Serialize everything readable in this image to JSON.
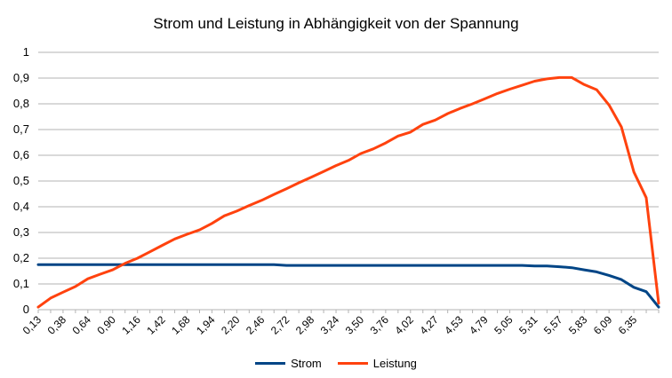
{
  "chart_data": {
    "type": "line",
    "title": "Strom und Leistung in Abhängigkeit von der Spannung",
    "xlabel": "",
    "ylabel": "",
    "ylim": [
      0,
      1
    ],
    "yticks": [
      "0",
      "0,1",
      "0,2",
      "0,3",
      "0,4",
      "0,5",
      "0,6",
      "0,7",
      "0,8",
      "0,9",
      "1"
    ],
    "grid": true,
    "legend_position": "bottom",
    "x": [
      "0,13",
      "0,26",
      "0,38",
      "0,51",
      "0,64",
      "0,77",
      "0,90",
      "1,03",
      "1,16",
      "1,29",
      "1,42",
      "1,55",
      "1,68",
      "1,81",
      "1,94",
      "2,07",
      "2,20",
      "2,33",
      "2,46",
      "2,59",
      "2,72",
      "2,85",
      "2,98",
      "3,11",
      "3,24",
      "3,37",
      "3,50",
      "3,63",
      "3,76",
      "3,89",
      "4,02",
      "4,15",
      "4,27",
      "4,40",
      "4,53",
      "4,66",
      "4,79",
      "4,92",
      "5,05",
      "5,18",
      "5,31",
      "5,44",
      "5,57",
      "5,70",
      "5,83",
      "5,96",
      "6,09",
      "6,22",
      "6,35",
      "6,48",
      "6,61"
    ],
    "x_tick_labels_shown": [
      "0,13",
      "0,38",
      "0,64",
      "0,90",
      "1,16",
      "1,42",
      "1,68",
      "1,94",
      "2,20",
      "2,46",
      "2,72",
      "2,98",
      "3,24",
      "3,50",
      "3,76",
      "4,02",
      "4,27",
      "4,53",
      "4,79",
      "5,05",
      "5,31",
      "5,57",
      "5,83",
      "6,09",
      "6,35"
    ],
    "series": [
      {
        "name": "Strom",
        "color": "#004586",
        "values": [
          0.175,
          0.175,
          0.175,
          0.175,
          0.175,
          0.175,
          0.175,
          0.175,
          0.175,
          0.175,
          0.175,
          0.175,
          0.175,
          0.175,
          0.175,
          0.175,
          0.175,
          0.175,
          0.175,
          0.175,
          0.172,
          0.172,
          0.172,
          0.172,
          0.172,
          0.172,
          0.172,
          0.172,
          0.172,
          0.172,
          0.172,
          0.172,
          0.172,
          0.172,
          0.172,
          0.172,
          0.172,
          0.172,
          0.172,
          0.172,
          0.17,
          0.17,
          0.167,
          0.163,
          0.155,
          0.147,
          0.133,
          0.117,
          0.087,
          0.07,
          0.01
        ]
      },
      {
        "name": "Leistung",
        "color": "#ff420e",
        "values": [
          0.01,
          0.045,
          0.068,
          0.09,
          0.12,
          0.138,
          0.155,
          0.18,
          0.2,
          0.225,
          0.25,
          0.275,
          0.293,
          0.31,
          0.335,
          0.365,
          0.383,
          0.405,
          0.425,
          0.448,
          0.47,
          0.493,
          0.515,
          0.537,
          0.56,
          0.58,
          0.607,
          0.625,
          0.648,
          0.675,
          0.69,
          0.72,
          0.737,
          0.762,
          0.782,
          0.8,
          0.82,
          0.84,
          0.857,
          0.872,
          0.888,
          0.897,
          0.902,
          0.902,
          0.875,
          0.855,
          0.795,
          0.71,
          0.535,
          0.435,
          0.025
        ]
      }
    ]
  }
}
